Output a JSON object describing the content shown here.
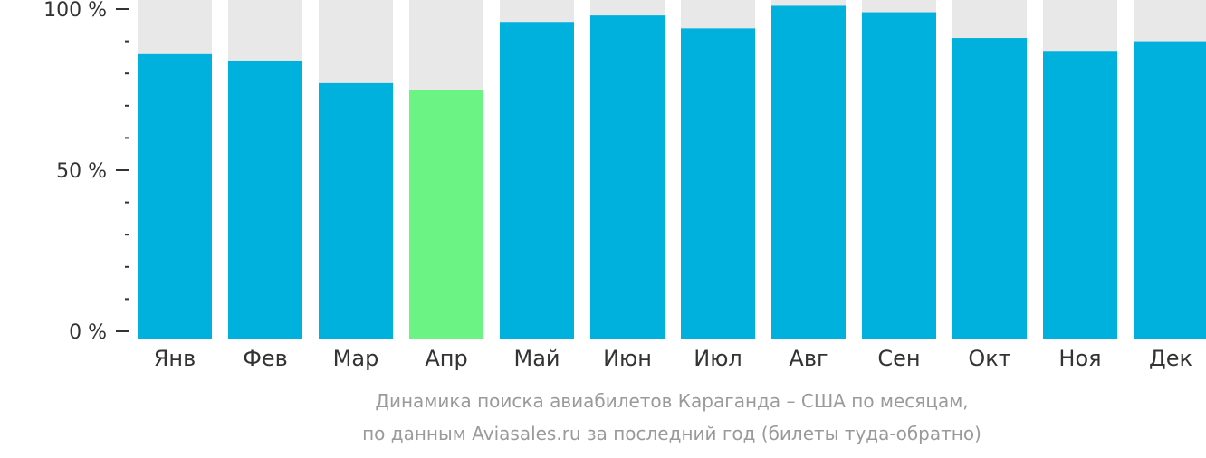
{
  "chart_data": {
    "type": "bar",
    "categories": [
      "Янв",
      "Фев",
      "Мар",
      "Апр",
      "Май",
      "Июн",
      "Июл",
      "Авг",
      "Сен",
      "Окт",
      "Ноя",
      "Дек"
    ],
    "values": [
      86,
      84,
      77,
      75,
      96,
      98,
      94,
      101,
      99,
      91,
      87,
      90
    ],
    "highlight_index": 3,
    "ylim": [
      0,
      100
    ],
    "y_ticks": [
      "0 %",
      "50 %",
      "100 %"
    ],
    "y_tick_values": [
      0,
      50,
      100
    ],
    "minor_tick_step": 10,
    "colors": {
      "bar": "#00b1dd",
      "highlight": "#6bf384",
      "background_bar": "#e8e8e8",
      "axis": "#333333",
      "label": "#333333"
    },
    "grid": false,
    "legend": "none"
  },
  "caption": {
    "line1": "Динамика поиска авиабилетов Караганда – США по месяцам,",
    "line2": "по данным Aviasales.ru за последний год (билеты туда-обратно)"
  }
}
